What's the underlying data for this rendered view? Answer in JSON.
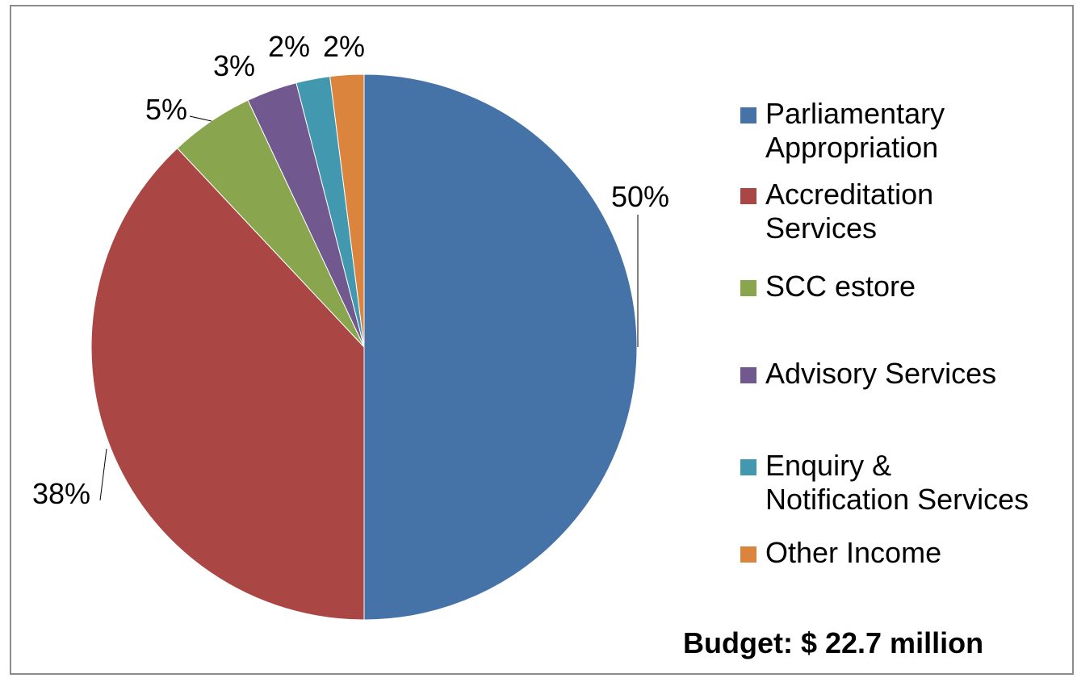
{
  "chart_data": {
    "type": "pie",
    "title": "",
    "categories": [
      "Parliamentary Appropriation",
      "Accreditation Services",
      "SCC estore",
      "Advisory Services",
      "Enquiry & Notification Services",
      "Other Income"
    ],
    "legend_labels": [
      "Parliamentary\nAppropriation",
      "Accreditation\nServices",
      "SCC estore",
      "Advisory Services",
      "Enquiry &\nNotification Services",
      "Other Income"
    ],
    "values": [
      50,
      38,
      5,
      3,
      2,
      2
    ],
    "value_labels": [
      "50%",
      "38%",
      "5%",
      "3%",
      "2%",
      "2%"
    ],
    "colors": [
      "#4572a7",
      "#aa4643",
      "#89a54e",
      "#71588f",
      "#4198af",
      "#db843d"
    ],
    "legend_position": "right",
    "start_angle": "12 o'clock",
    "direction": "clockwise"
  },
  "note": {
    "budget": "Budget: $ 22.7 million"
  }
}
